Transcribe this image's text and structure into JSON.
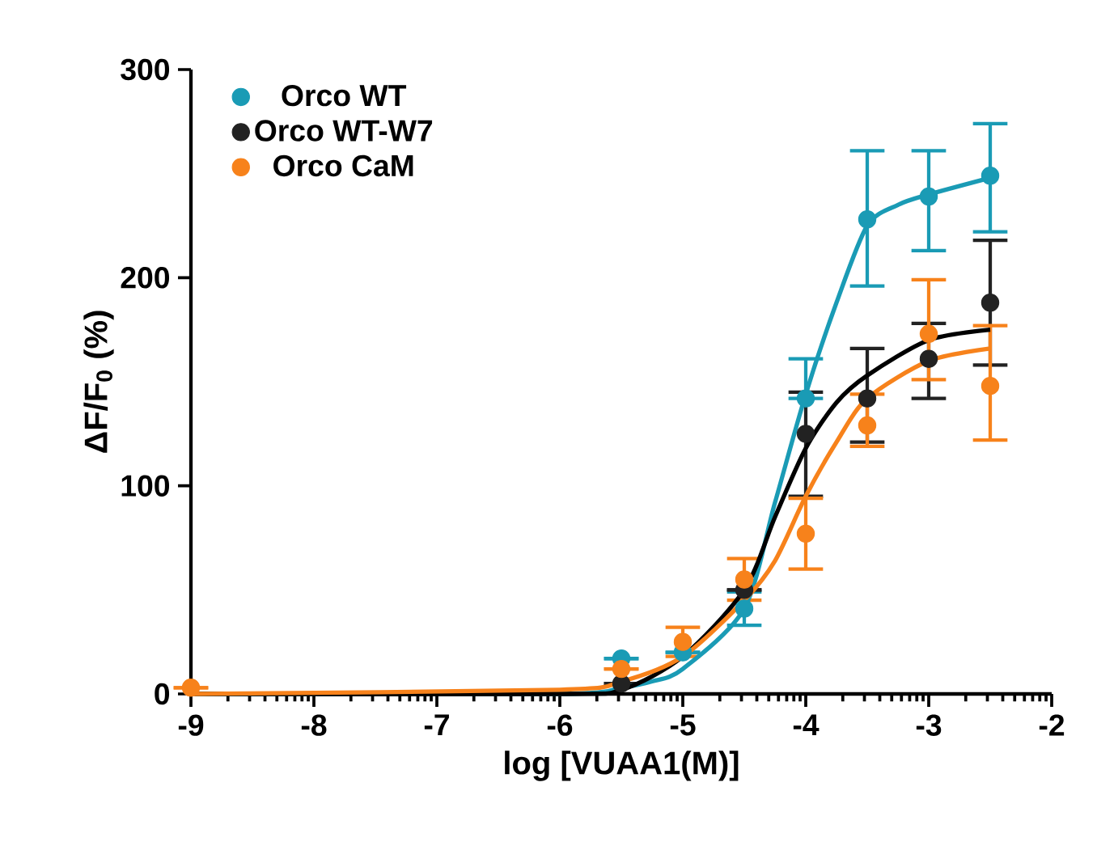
{
  "chart_data": {
    "type": "scatter",
    "xlabel": "log [VUAA1(M)]",
    "ylabel": "ΔF/F$_{0}$ (%)",
    "xlim": [
      -9,
      -2
    ],
    "ylim": [
      0,
      300
    ],
    "xticks": [
      -9,
      -8,
      -7,
      -6,
      -5,
      -4,
      -3,
      -2
    ],
    "yticks": [
      0,
      100,
      200,
      300
    ],
    "legend": "top left",
    "grid": false,
    "series": [
      {
        "name": "Orco WT",
        "color": "#1a9bb5",
        "marker": "circle",
        "x": [
          -5.5,
          -5,
          -4.5,
          -4,
          -3.5,
          -3,
          -2.5
        ],
        "values": [
          17,
          20,
          41,
          142,
          228,
          239,
          249
        ],
        "errors": [
          null,
          null,
          8,
          [
            142,
            161
          ],
          [
            196,
            261
          ],
          [
            213,
            261
          ],
          [
            222,
            274
          ]
        ]
      },
      {
        "name": "Orco WT-W7",
        "color": "#222222",
        "marker": "circle",
        "x": [
          -5.5,
          -5,
          -4.5,
          -4,
          -3.5,
          -3,
          -2.5
        ],
        "values": [
          5,
          null,
          50,
          125,
          142,
          161,
          188
        ],
        "errors": [
          null,
          null,
          null,
          [
            95,
            145
          ],
          [
            121,
            166
          ],
          [
            142,
            178
          ],
          [
            158,
            218
          ]
        ]
      },
      {
        "name": "Orco CaM",
        "color": "#f7821b",
        "marker": "circle",
        "x": [
          -9,
          -5.5,
          -5,
          -4.5,
          -4,
          -3.5,
          -3,
          -2.5
        ],
        "values": [
          3,
          12,
          25,
          55,
          77,
          129,
          173,
          148
        ],
        "errors": [
          null,
          null,
          7,
          10,
          [
            60,
            94
          ],
          [
            119,
            144
          ],
          [
            151,
            199
          ],
          [
            122,
            177
          ]
        ]
      },
      {
        "type": "line",
        "marker": "none",
        "color": "#1a9bb5",
        "x": [
          -9,
          -6,
          -5.5,
          -5.25,
          -5,
          -4.5,
          -4.25,
          -4,
          -3.75,
          -3.5,
          -3.25,
          -3,
          -2.5
        ],
        "values": [
          0,
          0,
          3,
          6,
          12,
          41,
          92,
          144,
          188,
          225,
          235,
          240,
          248
        ]
      },
      {
        "type": "line",
        "marker": "none",
        "color": "#000000",
        "x": [
          -9,
          -6,
          -5.5,
          -5,
          -4.5,
          -4.25,
          -4,
          -3.75,
          -3.5,
          -3,
          -2.5
        ],
        "values": [
          0,
          0,
          2,
          18,
          50,
          85,
          118,
          140,
          153,
          170,
          175
        ]
      },
      {
        "type": "line",
        "marker": "none",
        "color": "#f7821b",
        "x": [
          -9,
          -6,
          -5.5,
          -5,
          -4.5,
          -4.25,
          -4,
          -3.75,
          -3.5,
          -3,
          -2.5
        ],
        "values": [
          0,
          2,
          6,
          18,
          45,
          64,
          95,
          121,
          142,
          160,
          166
        ]
      }
    ]
  }
}
